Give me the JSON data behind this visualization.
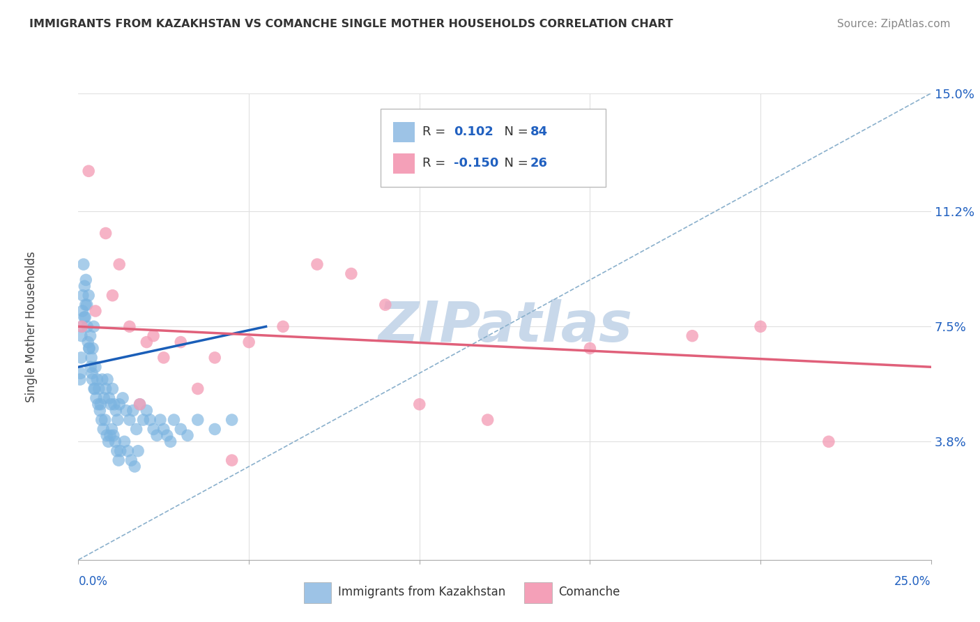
{
  "title": "IMMIGRANTS FROM KAZAKHSTAN VS COMANCHE SINGLE MOTHER HOUSEHOLDS CORRELATION CHART",
  "source": "Source: ZipAtlas.com",
  "xlabel_blue": "Immigrants from Kazakhstan",
  "xlabel_pink": "Comanche",
  "ylabel": "Single Mother Households",
  "xlim": [
    0.0,
    25.0
  ],
  "ylim": [
    0.0,
    15.0
  ],
  "ytick_vals": [
    3.8,
    7.5,
    11.2,
    15.0
  ],
  "ytick_labels": [
    "3.8%",
    "7.5%",
    "11.2%",
    "15.0%"
  ],
  "R_blue": 0.102,
  "N_blue": 84,
  "R_pink": -0.15,
  "N_pink": 26,
  "blue_dot_color": "#7ab3e0",
  "pink_dot_color": "#f4a0b8",
  "blue_line_color": "#1a5eb8",
  "pink_line_color": "#e0607a",
  "dash_line_color": "#8ab0cc",
  "watermark_color": "#c8d8ea",
  "legend_box_blue": "#9dc3e6",
  "legend_box_pink": "#f4a0b8",
  "label_color": "#2060c0",
  "grid_color": "#e0e0e0",
  "blue_points_x": [
    0.05,
    0.08,
    0.1,
    0.12,
    0.15,
    0.18,
    0.2,
    0.22,
    0.25,
    0.28,
    0.3,
    0.32,
    0.35,
    0.38,
    0.4,
    0.42,
    0.45,
    0.48,
    0.5,
    0.55,
    0.6,
    0.65,
    0.7,
    0.75,
    0.8,
    0.85,
    0.9,
    0.95,
    1.0,
    1.05,
    1.1,
    1.15,
    1.2,
    1.3,
    1.4,
    1.5,
    1.6,
    1.7,
    1.8,
    1.9,
    2.0,
    2.1,
    2.2,
    2.3,
    2.4,
    2.5,
    2.6,
    2.7,
    2.8,
    3.0,
    3.2,
    3.5,
    4.0,
    4.5,
    0.06,
    0.09,
    0.13,
    0.17,
    0.21,
    0.26,
    0.31,
    0.36,
    0.41,
    0.46,
    0.52,
    0.58,
    0.63,
    0.68,
    0.73,
    0.78,
    0.83,
    0.88,
    0.93,
    0.98,
    1.03,
    1.08,
    1.13,
    1.18,
    1.23,
    1.35,
    1.45,
    1.55,
    1.65,
    1.75
  ],
  "blue_points_y": [
    5.8,
    6.5,
    7.5,
    8.0,
    9.5,
    8.8,
    7.8,
    9.0,
    8.2,
    7.0,
    8.5,
    6.8,
    7.2,
    6.5,
    6.0,
    6.8,
    7.5,
    5.5,
    6.2,
    5.8,
    5.5,
    5.0,
    5.8,
    5.2,
    5.5,
    5.8,
    5.2,
    5.0,
    5.5,
    5.0,
    4.8,
    4.5,
    5.0,
    5.2,
    4.8,
    4.5,
    4.8,
    4.2,
    5.0,
    4.5,
    4.8,
    4.5,
    4.2,
    4.0,
    4.5,
    4.2,
    4.0,
    3.8,
    4.5,
    4.2,
    4.0,
    4.5,
    4.2,
    4.5,
    6.0,
    7.2,
    8.5,
    7.8,
    8.2,
    7.5,
    6.8,
    6.2,
    5.8,
    5.5,
    5.2,
    5.0,
    4.8,
    4.5,
    4.2,
    4.5,
    4.0,
    3.8,
    4.0,
    4.2,
    4.0,
    3.8,
    3.5,
    3.2,
    3.5,
    3.8,
    3.5,
    3.2,
    3.0,
    3.5
  ],
  "pink_points_x": [
    0.1,
    0.5,
    1.0,
    1.5,
    2.0,
    2.5,
    3.0,
    3.5,
    4.0,
    5.0,
    6.0,
    7.0,
    8.0,
    9.0,
    10.0,
    12.0,
    15.0,
    18.0,
    20.0,
    22.0,
    0.3,
    0.8,
    1.2,
    1.8,
    2.2,
    4.5
  ],
  "pink_points_y": [
    7.5,
    8.0,
    8.5,
    7.5,
    7.0,
    6.5,
    7.0,
    5.5,
    6.5,
    7.0,
    7.5,
    9.5,
    9.2,
    8.2,
    5.0,
    4.5,
    6.8,
    7.2,
    7.5,
    3.8,
    12.5,
    10.5,
    9.5,
    5.0,
    7.2,
    3.2
  ],
  "blue_line_x": [
    0,
    5.5
  ],
  "blue_line_y": [
    6.2,
    7.5
  ],
  "pink_line_x": [
    0,
    25
  ],
  "pink_line_y": [
    7.5,
    6.2
  ],
  "dash_line_x": [
    0,
    25
  ],
  "dash_line_y": [
    0,
    15
  ]
}
